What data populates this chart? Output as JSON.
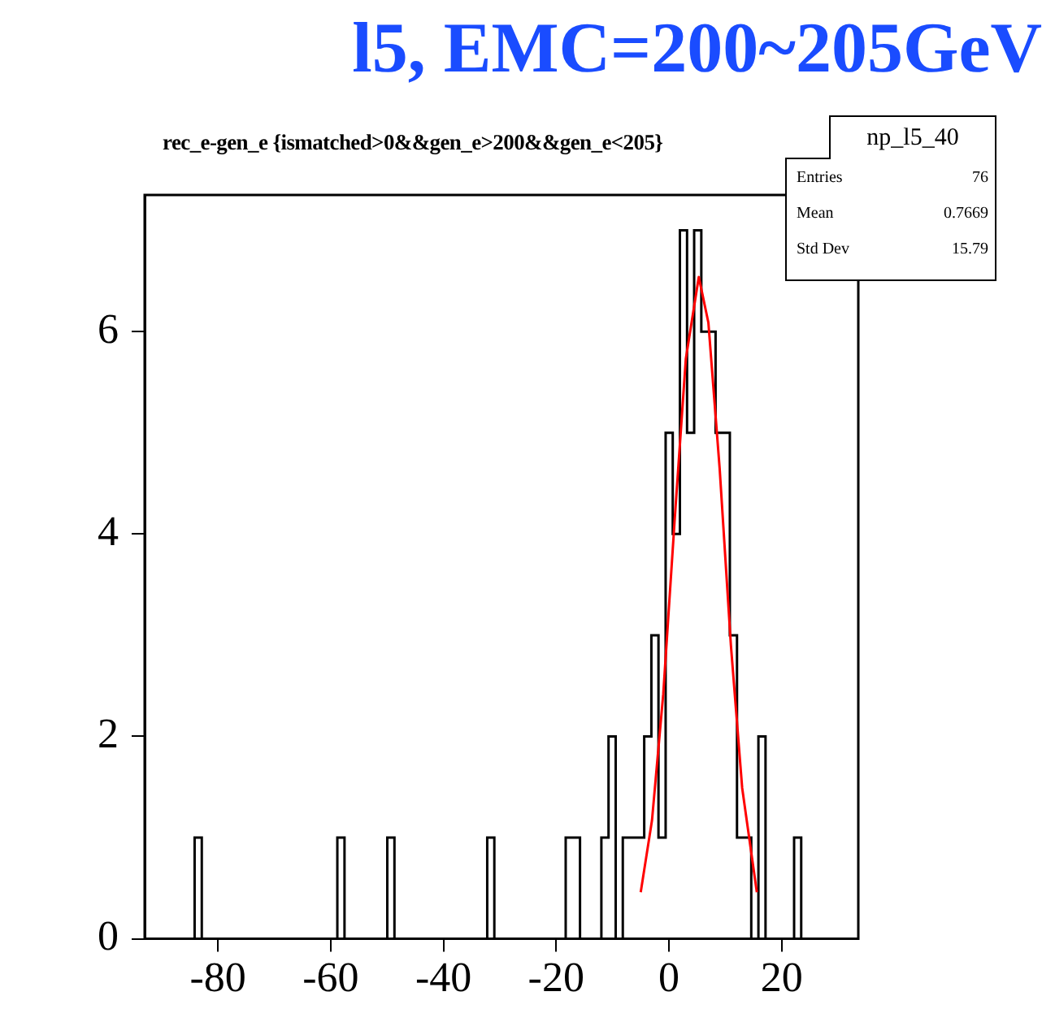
{
  "chart_data": {
    "type": "histogram",
    "title": "l5, EMC=200~205GeV",
    "subtitle": "rec_e-gen_e {ismatched>0&&gen_e>200&&gen_e<205}",
    "bins": [
      -93,
      -84.14,
      -82.87,
      -58.82,
      -57.55,
      -49.96,
      -48.69,
      -32.23,
      -30.97,
      -18.31,
      -17.04,
      -15.77,
      -11.98,
      -10.71,
      -9.44,
      -8.18,
      -6.91,
      -5.65,
      -4.38,
      -3.11,
      -1.85,
      -0.58,
      0.68,
      1.95,
      3.22,
      4.48,
      5.75,
      7.01,
      8.28,
      9.55,
      10.81,
      12.08,
      13.34,
      14.61,
      15.88,
      17.14,
      22.21,
      23.47,
      33.6
    ],
    "values": [
      0,
      1,
      0,
      1,
      0,
      1,
      0,
      1,
      0,
      1,
      1,
      0,
      1,
      2,
      0,
      1,
      1,
      1,
      2,
      3,
      1,
      5,
      4,
      7,
      5,
      7,
      6,
      6,
      5,
      5,
      3,
      1,
      1,
      0,
      2,
      0,
      1,
      0
    ],
    "color": "#000000",
    "series": [
      {
        "type": "line",
        "color": "#ff0000",
        "x": [
          -5,
          -3,
          -1,
          1,
          3,
          5.3,
          7,
          9,
          11,
          13,
          15.6
        ],
        "values": [
          0.46,
          1.17,
          2.42,
          4.12,
          5.73,
          6.54,
          6.09,
          4.65,
          2.9,
          1.49,
          0.46
        ]
      }
    ],
    "xlim": [
      -93,
      33.6
    ],
    "ylim": [
      0,
      7.35
    ],
    "xticks": [
      -80,
      -60,
      -40,
      -20,
      0,
      20
    ],
    "yticks": [
      0,
      2,
      4,
      6
    ],
    "grid": false,
    "legend": false,
    "annotations": [
      "np_l5_40",
      "Entries",
      "76",
      "Mean",
      "0.7669",
      "Std Dev",
      "15.79"
    ]
  }
}
